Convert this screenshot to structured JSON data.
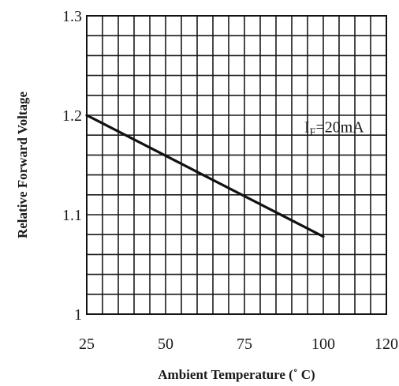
{
  "chart_data": {
    "type": "line",
    "title": "",
    "xlabel": "Ambient Temperature (˚ C)",
    "ylabel": "Relative Forward Voltage",
    "xlim": [
      25,
      120
    ],
    "ylim": [
      1.0,
      1.3
    ],
    "x_ticks": [
      "25",
      "50",
      "75",
      "100",
      "120"
    ],
    "x_tick_values": [
      25,
      50,
      75,
      100,
      120
    ],
    "y_ticks": [
      "1",
      "1.1",
      "1.2",
      "1.3"
    ],
    "y_tick_values": [
      1.0,
      1.1,
      1.2,
      1.3
    ],
    "grid": true,
    "x_grid_step": 5,
    "y_grid_step": 0.02,
    "series": [
      {
        "x": [
          25,
          100
        ],
        "y": [
          1.2,
          1.078
        ]
      }
    ],
    "annotations": [
      {
        "text": "IF=20mA",
        "x": 94,
        "y": 1.183
      }
    ],
    "colors": {
      "line": "#111111",
      "grid": "#1a1a1a",
      "background": "#ffffff"
    }
  }
}
